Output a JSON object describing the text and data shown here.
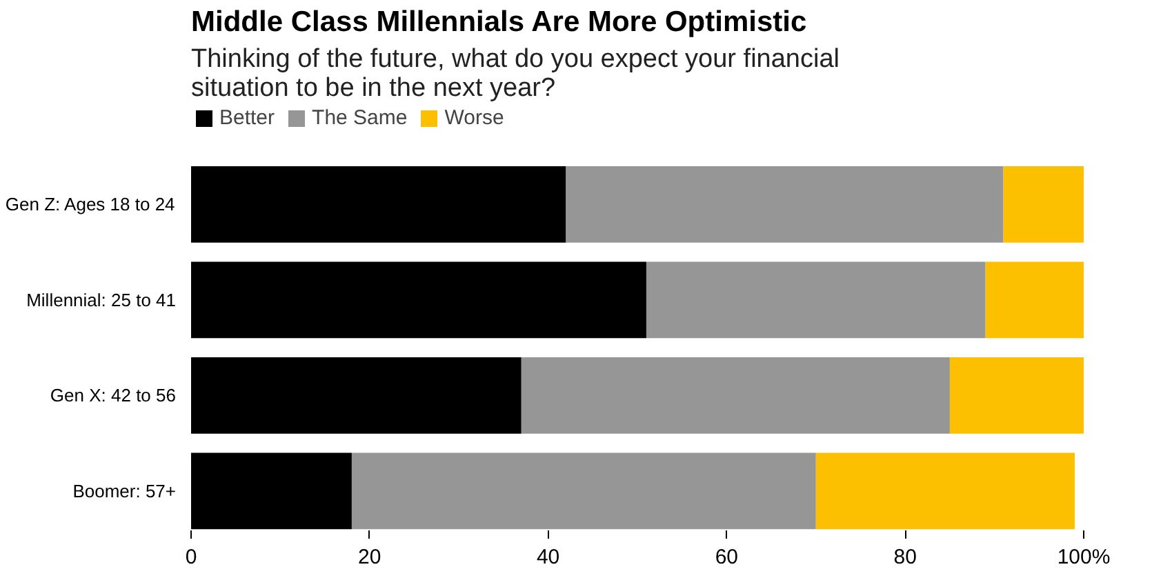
{
  "chart_data": {
    "type": "bar",
    "orientation": "horizontal",
    "stacked": true,
    "title": "Middle Class Millennials Are More Optimistic",
    "subtitle": "Thinking of the future, what do you expect your financial situation to be in the next year?",
    "categories": [
      "Gen Z: Ages 18 to 24",
      "Millennial: 25 to 41",
      "Gen X: 42 to 56",
      "Boomer: 57+"
    ],
    "series": [
      {
        "name": "Better",
        "color": "#000000",
        "values": [
          42,
          51,
          37,
          18
        ]
      },
      {
        "name": "The Same",
        "color": "#969696",
        "values": [
          49,
          38,
          48,
          52
        ]
      },
      {
        "name": "Worse",
        "color": "#fdc000",
        "values": [
          9,
          11,
          15,
          29
        ]
      }
    ],
    "xlim": [
      0,
      100
    ],
    "xticks": [
      0,
      20,
      40,
      60,
      80,
      {
        "value": 100,
        "label": "100%"
      }
    ],
    "grid": false,
    "legend": "top left"
  }
}
